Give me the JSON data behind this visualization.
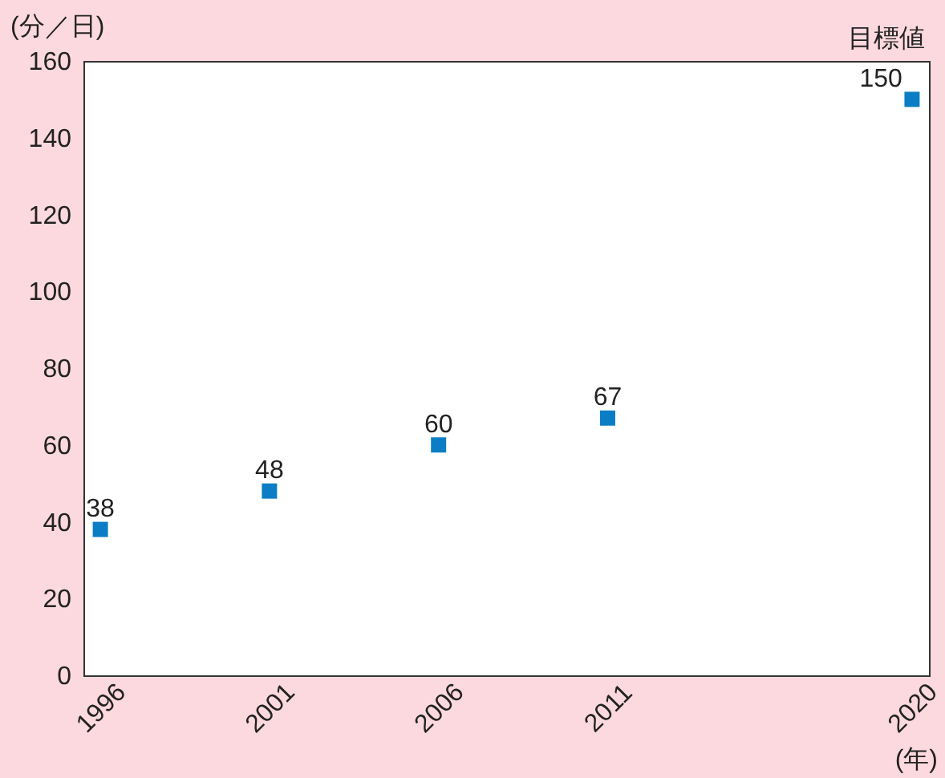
{
  "chart_data": {
    "type": "scatter",
    "xlabel": "(年)",
    "ylabel": "(分／日)",
    "x": [
      1996,
      2001,
      2006,
      2011,
      2020
    ],
    "series": [
      {
        "color": "#0a7dc4",
        "values": [
          38,
          48,
          60,
          67,
          150
        ]
      }
    ],
    "xlim": [
      1995.5,
      2020.5
    ],
    "xticks": [
      1996,
      2001,
      2006,
      2011,
      2020
    ],
    "ylim": [
      0,
      160
    ],
    "yticks": [
      0,
      20,
      40,
      60,
      80,
      100,
      120,
      140,
      160
    ],
    "annotations": [
      {
        "text": "目標値",
        "x": 2020,
        "y": 150
      }
    ],
    "data_labels": true,
    "grid": false,
    "marker": "square"
  }
}
